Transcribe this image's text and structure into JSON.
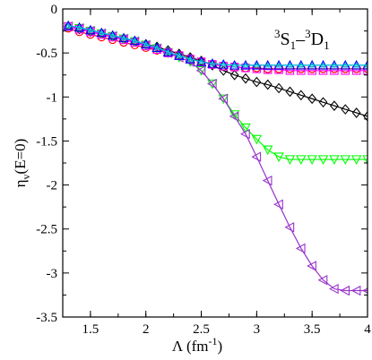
{
  "chart_data": {
    "type": "line",
    "title": "",
    "xlabel": {
      "main": "Λ (fm",
      "sup": "-1",
      "close": ")"
    },
    "ylabel": {
      "main": "η",
      "sub": "v",
      "rest": "(E=0)"
    },
    "xlim": [
      1.25,
      4.0
    ],
    "ylim": [
      -3.5,
      0.0
    ],
    "x_ticks": [
      1.5,
      2.0,
      2.5,
      3.0,
      3.5,
      4.0
    ],
    "x_tick_labels": [
      "1.5",
      "2",
      "2.5",
      "3",
      "3.5",
      "4"
    ],
    "y_ticks": [
      0,
      -0.5,
      -1,
      -1.5,
      -2,
      -2.5,
      -3,
      -3.5
    ],
    "y_tick_labels": [
      "0",
      "-0.5",
      "-1",
      "-1.5",
      "-2",
      "-2.5",
      "-3",
      "-3.5"
    ],
    "grid": false,
    "legend": "none",
    "annotation": {
      "sup1": "3",
      "s": "S",
      "sub1": "1",
      "dash": "–",
      "sup2": "3",
      "d": "D",
      "sub2": "1"
    },
    "series": [
      {
        "color": "#ff0000",
        "marker": "circle",
        "x": [
          1.3,
          1.4,
          1.5,
          1.6,
          1.7,
          1.8,
          1.9,
          2.0,
          2.1,
          2.2,
          2.3,
          2.4,
          2.5,
          2.6,
          2.7,
          2.8,
          2.9,
          3.0,
          3.1,
          3.2,
          3.3,
          3.4,
          3.5,
          3.6,
          3.7,
          3.8,
          3.9,
          4.0
        ],
        "y": [
          -0.22,
          -0.26,
          -0.29,
          -0.32,
          -0.35,
          -0.38,
          -0.41,
          -0.44,
          -0.47,
          -0.5,
          -0.53,
          -0.57,
          -0.6,
          -0.63,
          -0.65,
          -0.66,
          -0.67,
          -0.67,
          -0.68,
          -0.68,
          -0.68,
          -0.68,
          -0.68,
          -0.68,
          -0.68,
          -0.68,
          -0.68,
          -0.68
        ]
      },
      {
        "color": "#000000",
        "marker": "diamond",
        "x": [
          1.3,
          1.4,
          1.5,
          1.6,
          1.7,
          1.8,
          1.9,
          2.0,
          2.1,
          2.2,
          2.3,
          2.4,
          2.5,
          2.6,
          2.7,
          2.8,
          2.9,
          3.0,
          3.1,
          3.2,
          3.3,
          3.4,
          3.5,
          3.6,
          3.7,
          3.8,
          3.9,
          4.0
        ],
        "y": [
          -0.2,
          -0.23,
          -0.26,
          -0.28,
          -0.31,
          -0.34,
          -0.37,
          -0.4,
          -0.43,
          -0.47,
          -0.51,
          -0.55,
          -0.59,
          -0.64,
          -0.7,
          -0.75,
          -0.79,
          -0.83,
          -0.86,
          -0.9,
          -0.94,
          -0.98,
          -1.02,
          -1.06,
          -1.1,
          -1.14,
          -1.18,
          -1.22
        ]
      },
      {
        "color": "#00ff00",
        "marker": "triangle-down",
        "x": [
          1.3,
          1.4,
          1.5,
          1.6,
          1.7,
          1.8,
          1.9,
          2.0,
          2.1,
          2.2,
          2.3,
          2.4,
          2.5,
          2.6,
          2.7,
          2.8,
          2.9,
          3.0,
          3.1,
          3.2,
          3.3,
          3.4,
          3.5,
          3.6,
          3.7,
          3.8,
          3.9,
          4.0
        ],
        "y": [
          -0.2,
          -0.22,
          -0.25,
          -0.28,
          -0.31,
          -0.34,
          -0.37,
          -0.41,
          -0.45,
          -0.5,
          -0.55,
          -0.6,
          -0.7,
          -0.85,
          -1.02,
          -1.2,
          -1.35,
          -1.48,
          -1.6,
          -1.68,
          -1.71,
          -1.71,
          -1.71,
          -1.71,
          -1.71,
          -1.71,
          -1.71,
          -1.71
        ]
      },
      {
        "color": "#9933cc",
        "marker": "triangle-left",
        "x": [
          1.3,
          1.4,
          1.5,
          1.6,
          1.7,
          1.8,
          1.9,
          2.0,
          2.1,
          2.2,
          2.3,
          2.4,
          2.5,
          2.6,
          2.7,
          2.8,
          2.9,
          3.0,
          3.1,
          3.2,
          3.3,
          3.4,
          3.5,
          3.6,
          3.7,
          3.8,
          3.9,
          4.0
        ],
        "y": [
          -0.2,
          -0.22,
          -0.25,
          -0.28,
          -0.31,
          -0.34,
          -0.37,
          -0.41,
          -0.45,
          -0.5,
          -0.55,
          -0.6,
          -0.7,
          -0.85,
          -1.02,
          -1.22,
          -1.42,
          -1.68,
          -1.95,
          -2.22,
          -2.48,
          -2.72,
          -2.92,
          -3.08,
          -3.18,
          -3.2,
          -3.2,
          -3.2
        ]
      },
      {
        "color": "#ff00ff",
        "marker": "square",
        "x": [
          1.3,
          1.4,
          1.5,
          1.6,
          1.7,
          1.8,
          1.9,
          2.0,
          2.1,
          2.2,
          2.3,
          2.4,
          2.5,
          2.6,
          2.7,
          2.8,
          2.9,
          3.0,
          3.1,
          3.2,
          3.3,
          3.4,
          3.5,
          3.6,
          3.7,
          3.8,
          3.9,
          4.0
        ],
        "y": [
          -0.2,
          -0.23,
          -0.26,
          -0.29,
          -0.32,
          -0.35,
          -0.38,
          -0.42,
          -0.46,
          -0.5,
          -0.53,
          -0.57,
          -0.6,
          -0.63,
          -0.65,
          -0.66,
          -0.67,
          -0.68,
          -0.69,
          -0.69,
          -0.7,
          -0.7,
          -0.7,
          -0.7,
          -0.7,
          -0.7,
          -0.7,
          -0.7
        ]
      },
      {
        "color": "#0000ff",
        "marker": "triangle-up",
        "x": [
          1.3,
          1.4,
          1.5,
          1.6,
          1.7,
          1.8,
          1.9,
          2.0,
          2.1,
          2.2,
          2.3,
          2.4,
          2.5,
          2.6,
          2.7,
          2.8,
          2.9,
          3.0,
          3.1,
          3.2,
          3.3,
          3.4,
          3.5,
          3.6,
          3.7,
          3.8,
          3.9,
          4.0
        ],
        "y": [
          -0.19,
          -0.21,
          -0.24,
          -0.27,
          -0.3,
          -0.33,
          -0.36,
          -0.4,
          -0.44,
          -0.49,
          -0.53,
          -0.57,
          -0.6,
          -0.62,
          -0.63,
          -0.64,
          -0.64,
          -0.64,
          -0.64,
          -0.64,
          -0.64,
          -0.64,
          -0.64,
          -0.64,
          -0.64,
          -0.64,
          -0.64,
          -0.64
        ]
      },
      {
        "color": "#00cccc",
        "marker": "triangle-up-small",
        "x": [
          1.3,
          1.4,
          1.5,
          1.6,
          1.7,
          1.8,
          1.9,
          2.0,
          2.1,
          2.2,
          2.3,
          2.4,
          2.5,
          2.6,
          2.7,
          2.8,
          2.9,
          3.0,
          3.1,
          3.2,
          3.3,
          3.4,
          3.5,
          3.6,
          3.7,
          3.8,
          3.9,
          4.0
        ],
        "y": [
          -0.19,
          -0.21,
          -0.24,
          -0.27,
          -0.3,
          -0.33,
          -0.36,
          -0.4,
          -0.44,
          -0.49,
          -0.53,
          -0.57,
          -0.6,
          -0.62,
          -0.63,
          -0.64,
          -0.64,
          -0.64,
          -0.64,
          -0.64,
          -0.64,
          -0.64,
          -0.64,
          -0.64,
          -0.64,
          -0.64,
          -0.64,
          -0.64
        ]
      }
    ]
  }
}
